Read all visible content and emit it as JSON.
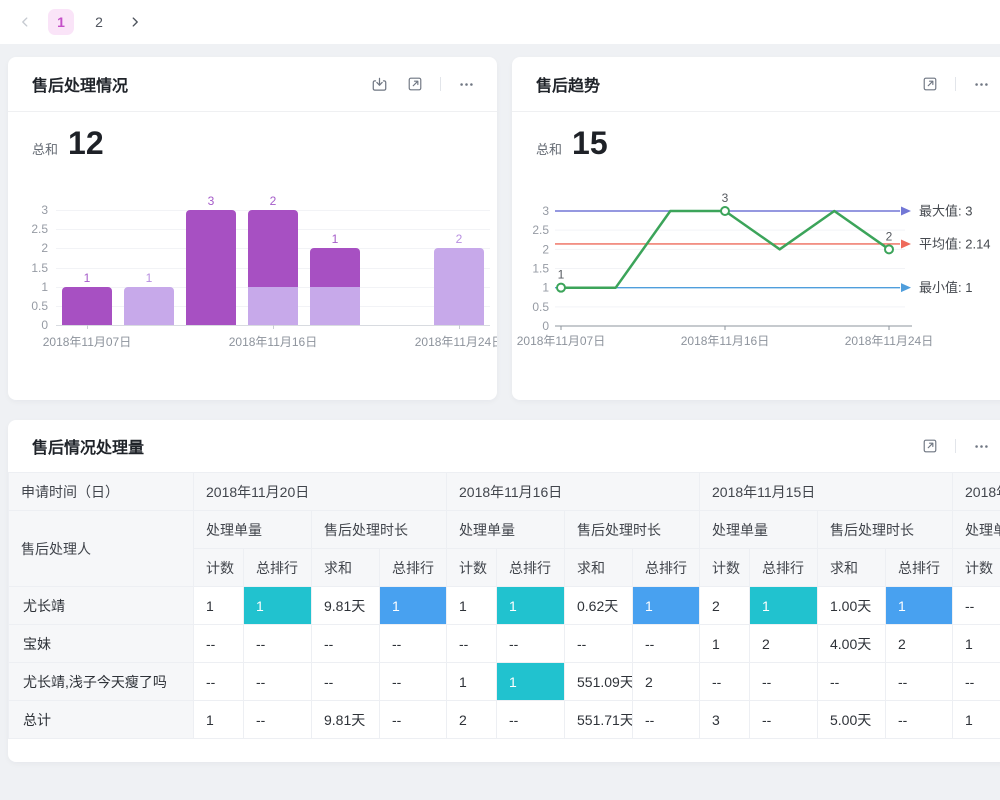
{
  "pagination": {
    "items": [
      "1",
      "2"
    ],
    "active": "1",
    "prev_disabled": true
  },
  "cards": {
    "bar": {
      "title": "售后处理情况",
      "kpi_label": "总和",
      "kpi_value": "12"
    },
    "line": {
      "title": "售后趋势",
      "kpi_label": "总和",
      "kpi_value": "15"
    },
    "table": {
      "title": "售后情况处理量"
    }
  },
  "chart_data": [
    {
      "type": "bar",
      "stacked": true,
      "title": "售后处理情况",
      "total": 12,
      "categories": [
        "2018年11月07日",
        "",
        "",
        "2018年11月16日",
        "",
        "",
        "2018年11月24日"
      ],
      "x_ticks": [
        {
          "index": 0,
          "label": "2018年11月07日"
        },
        {
          "index": 3,
          "label": "2018年11月16日"
        },
        {
          "index": 6,
          "label": "2018年11月24日"
        }
      ],
      "series": [
        {
          "name": "light",
          "color": "#c7a9ea",
          "label_color": "#b88fe0",
          "values": [
            0,
            1,
            0,
            1,
            1,
            0,
            2
          ]
        },
        {
          "name": "dark",
          "color": "#a750c2",
          "label_color": "#a55cc9",
          "values": [
            1,
            0,
            3,
            2,
            1,
            0,
            0
          ]
        }
      ],
      "ylim": [
        0,
        3
      ],
      "yticks": [
        0,
        0.5,
        1,
        1.5,
        2,
        2.5,
        3
      ],
      "grid": true,
      "legend": "none"
    },
    {
      "type": "line",
      "title": "售后趋势",
      "total": 15,
      "values": [
        1,
        1,
        3,
        3,
        2,
        3,
        2
      ],
      "x_ticks": [
        {
          "index": 0,
          "label": "2018年11月07日"
        },
        {
          "index": 3,
          "label": "2018年11月16日"
        },
        {
          "index": 6,
          "label": "2018年11月24日"
        }
      ],
      "point_labels": [
        {
          "index": 0,
          "text": "1"
        },
        {
          "index": 3,
          "text": "3"
        },
        {
          "index": 6,
          "text": "2"
        }
      ],
      "marker_indices": [
        0,
        3,
        6
      ],
      "color": "#3ca45a",
      "ylim": [
        0,
        3
      ],
      "yticks": [
        0,
        0.5,
        1,
        1.5,
        2,
        2.5,
        3
      ],
      "grid": true,
      "legend": "none",
      "ref_lines": [
        {
          "text": "最大值: 3",
          "value": 3,
          "color": "#7277d6"
        },
        {
          "text": "平均值: 2.14",
          "value": 2.14,
          "color": "#ee6a5b"
        },
        {
          "text": "最小值: 1",
          "value": 1,
          "color": "#4f9edc"
        }
      ]
    }
  ],
  "table": {
    "corner_row1": "申请时间（日）",
    "corner_row2": "售后处理人",
    "metric_labels": [
      "处理单量",
      "售后处理时长"
    ],
    "sub_labels": [
      "计数",
      "总排行",
      "求和",
      "总排行"
    ],
    "groups": [
      {
        "date": "2018年11月20日",
        "partial": false
      },
      {
        "date": "2018年11月16日",
        "partial": false
      },
      {
        "date": "2018年11月15日",
        "partial": false
      },
      {
        "date": "2018年",
        "partial": true
      }
    ],
    "highlight_colors": {
      "cyan": "#21c2cf",
      "blue": "#48a1f0"
    },
    "rows": [
      {
        "name": "尤长靖",
        "cells": [
          "1",
          {
            "v": "1",
            "hl": "cyan"
          },
          "9.81天",
          {
            "v": "1",
            "hl": "blue"
          },
          "1",
          {
            "v": "1",
            "hl": "cyan"
          },
          "0.62天",
          {
            "v": "1",
            "hl": "blue"
          },
          "2",
          {
            "v": "1",
            "hl": "cyan"
          },
          "1.00天",
          {
            "v": "1",
            "hl": "blue"
          },
          "--",
          ""
        ]
      },
      {
        "name": "宝妹",
        "cells": [
          "--",
          "--",
          "--",
          "--",
          "--",
          "--",
          "--",
          "--",
          "1",
          "2",
          "4.00天",
          "2",
          "1",
          ""
        ]
      },
      {
        "name": "尤长靖,浅子今天瘦了吗",
        "cells": [
          "--",
          "--",
          "--",
          "--",
          "1",
          {
            "v": "1",
            "hl": "cyan"
          },
          "551.09天",
          "2",
          "--",
          "--",
          "--",
          "--",
          "--",
          ""
        ]
      },
      {
        "name": "总计",
        "cells": [
          "1",
          "--",
          "9.81天",
          "--",
          "2",
          "--",
          "551.71天",
          "--",
          "3",
          "--",
          "5.00天",
          "--",
          "1",
          ""
        ]
      }
    ]
  }
}
